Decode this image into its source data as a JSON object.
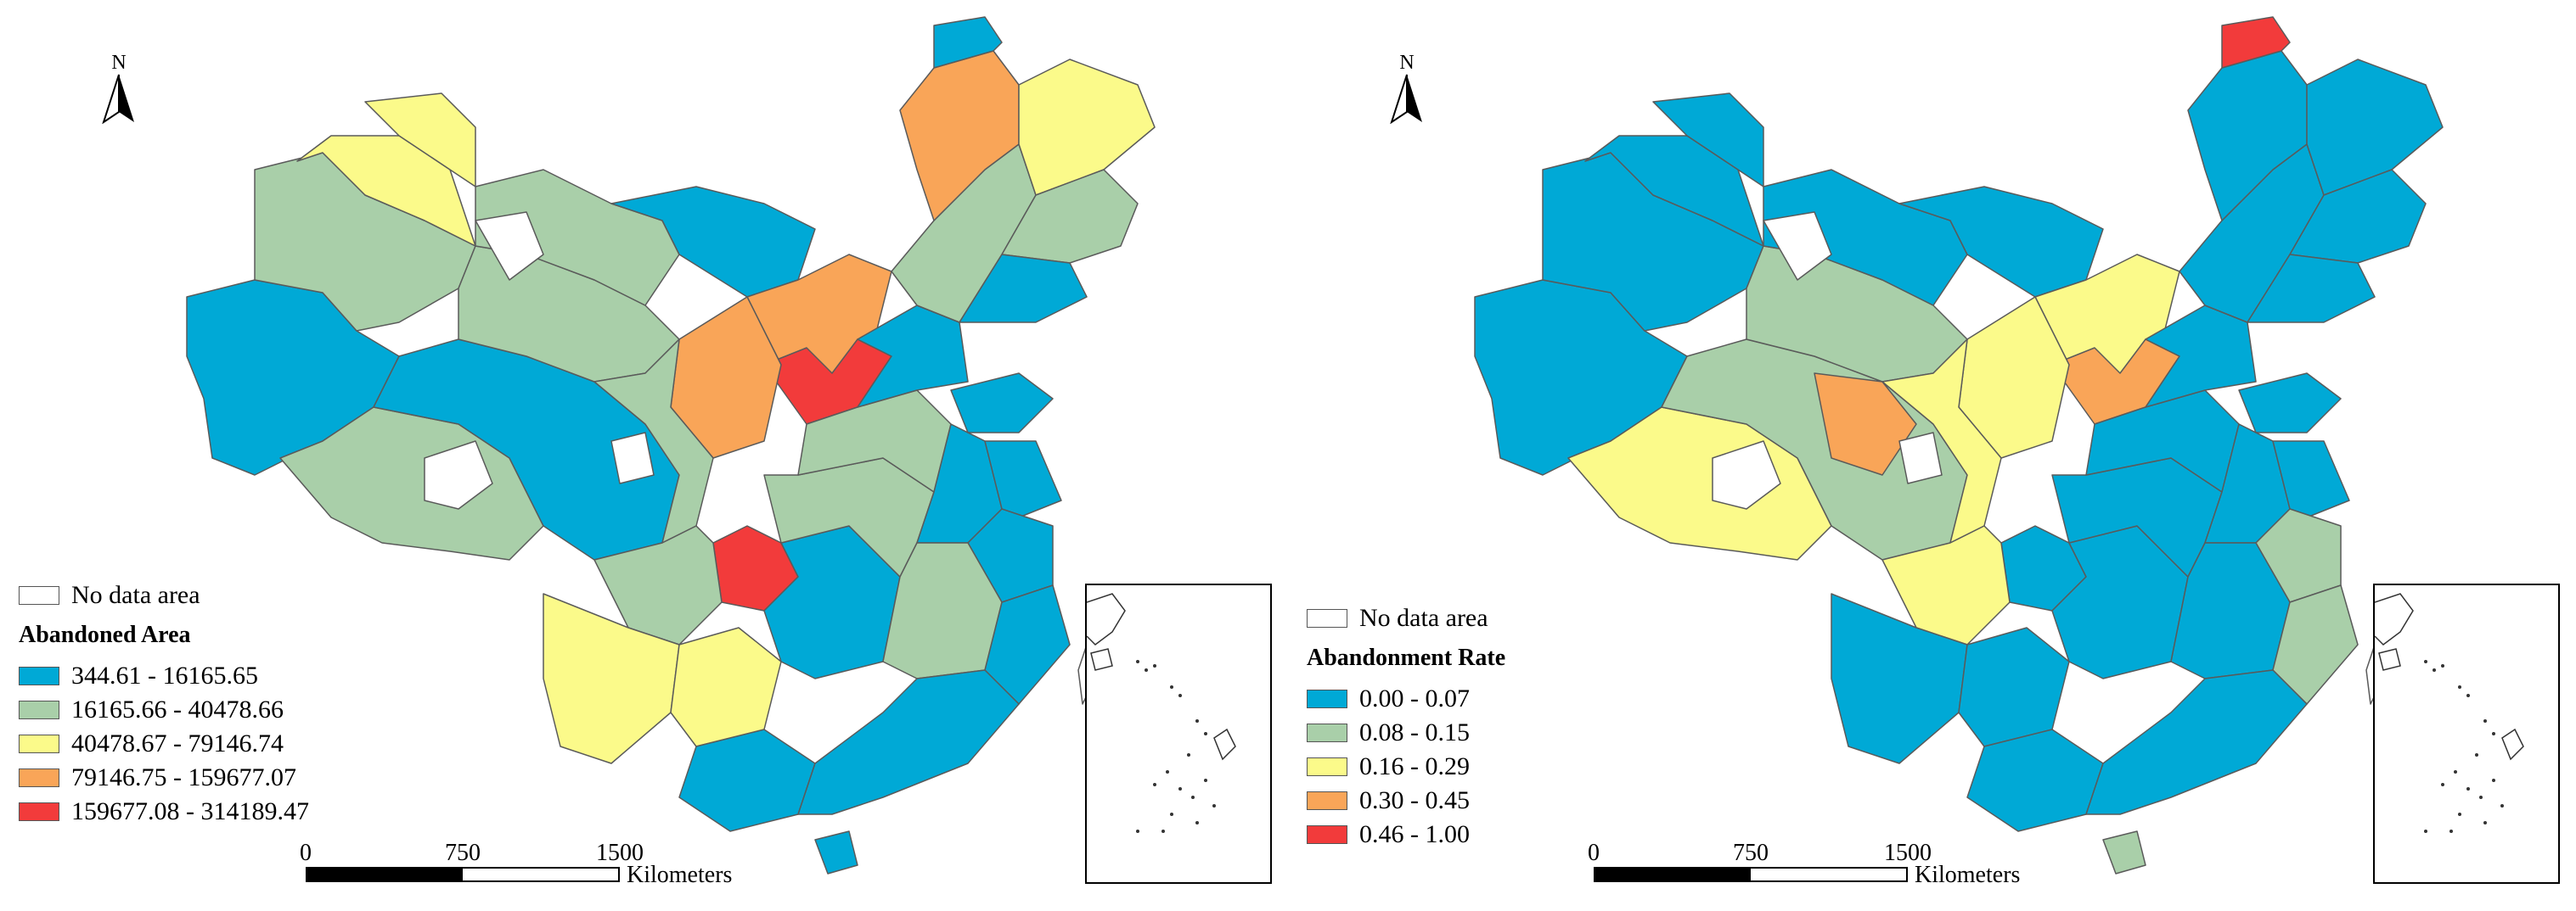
{
  "colors": {
    "class1": "#00a9d6",
    "class2": "#a9cfa9",
    "class3": "#fbfa8a",
    "class4": "#f9a558",
    "class5": "#f23b3b",
    "nodata": "#ffffff",
    "border": "#5a5a5a"
  },
  "panels": [
    {
      "north_label": "N",
      "nodata_label": "No data area",
      "legend_title": "Abandoned Area",
      "classes": [
        {
          "label": "344.61 - 16165.65",
          "color_key": "class1"
        },
        {
          "label": "16165.66 - 40478.66",
          "color_key": "class2"
        },
        {
          "label": "40478.67 - 79146.74",
          "color_key": "class3"
        },
        {
          "label": "79146.75 - 159677.07",
          "color_key": "class4"
        },
        {
          "label": "159677.08 - 314189.47",
          "color_key": "class5"
        }
      ],
      "scale": {
        "ticks": [
          "0",
          "750",
          "1500"
        ],
        "unit": "Kilometers"
      }
    },
    {
      "north_label": "N",
      "nodata_label": "No data area",
      "legend_title": "Abandonment Rate",
      "classes": [
        {
          "label": "0.00 - 0.07",
          "color_key": "class1"
        },
        {
          "label": "0.08 - 0.15",
          "color_key": "class2"
        },
        {
          "label": "0.16 - 0.29",
          "color_key": "class3"
        },
        {
          "label": "0.30 - 0.45",
          "color_key": "class4"
        },
        {
          "label": "0.46 - 1.00",
          "color_key": "class5"
        }
      ],
      "scale": {
        "ticks": [
          "0",
          "750",
          "1500"
        ],
        "unit": "Kilometers"
      }
    }
  ]
}
